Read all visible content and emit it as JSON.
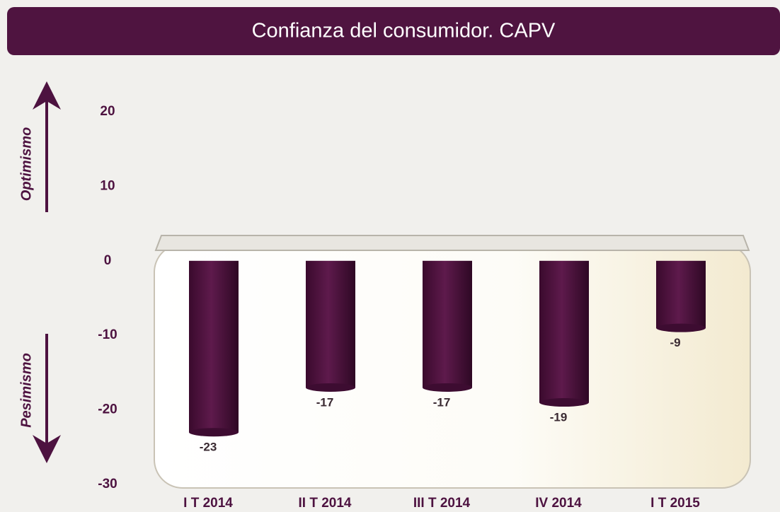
{
  "chart_data": {
    "type": "bar",
    "title": "Confianza del consumidor. CAPV",
    "categories": [
      "I T 2014",
      "II T 2014",
      "III T 2014",
      "IV 2014",
      "I T 2015"
    ],
    "values": [
      -23,
      -17,
      -17,
      -19,
      -9
    ],
    "color": "#4a0f3a",
    "ylim": [
      -30,
      20
    ],
    "yticks": [
      -30,
      -20,
      -10,
      0,
      10,
      20
    ],
    "annotations": [
      "Optimismo",
      "Pesimismo"
    ]
  }
}
